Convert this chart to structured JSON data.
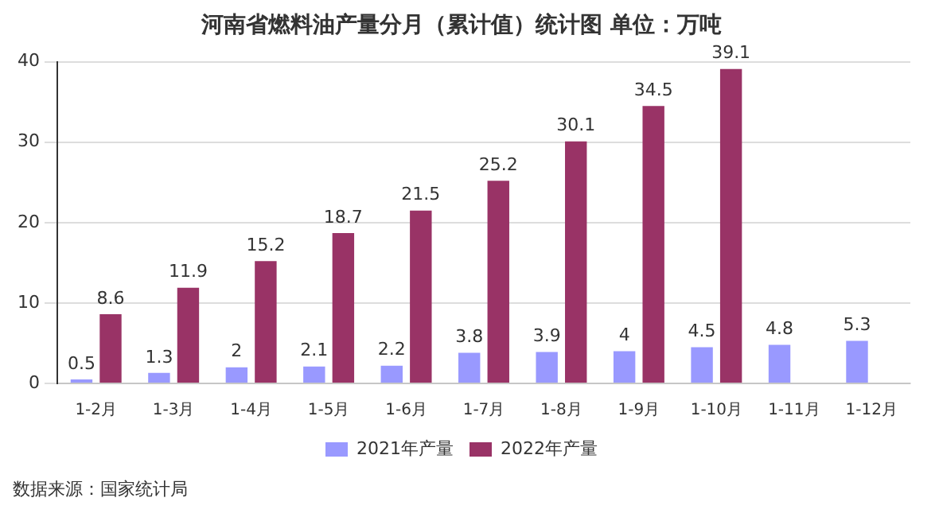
{
  "chart_data": {
    "type": "bar",
    "title": "河南省燃料油产量分月（累计值）统计图 单位：万吨",
    "categories": [
      "1-2月",
      "1-3月",
      "1-4月",
      "1-5月",
      "1-6月",
      "1-7月",
      "1-8月",
      "1-9月",
      "1-10月",
      "1-11月",
      "1-12月"
    ],
    "series": [
      {
        "name": "2021年产量",
        "color": "#9999ff",
        "values": [
          0.5,
          1.3,
          2,
          2.1,
          2.2,
          3.8,
          3.9,
          4,
          4.5,
          4.8,
          5.3
        ]
      },
      {
        "name": "2022年产量",
        "color": "#993366",
        "values": [
          8.6,
          11.9,
          15.2,
          18.7,
          21.5,
          25.2,
          30.1,
          34.5,
          39.1,
          null,
          null
        ]
      }
    ],
    "ylim": [
      0,
      40
    ],
    "yticks": [
      0,
      10,
      20,
      30,
      40
    ],
    "grid": "y",
    "legend": "bottom",
    "data_labels": true,
    "annotations": [
      "数据来源：国家统计局"
    ]
  }
}
